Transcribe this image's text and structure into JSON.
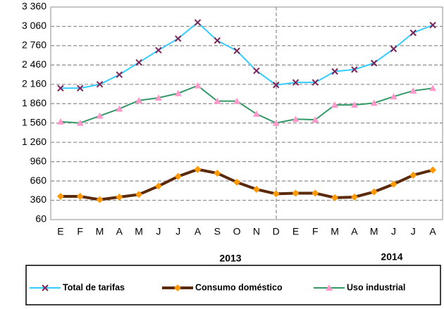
{
  "chart_data": {
    "type": "line",
    "categories": [
      "E",
      "F",
      "M",
      "A",
      "M",
      "J",
      "J",
      "A",
      "S",
      "O",
      "N",
      "D",
      "E",
      "F",
      "M",
      "A",
      "M",
      "J",
      "J",
      "A"
    ],
    "annotations": [
      "2013",
      "2014"
    ],
    "ylim": [
      60,
      3360
    ],
    "yticks": [
      60,
      360,
      660,
      960,
      {
        "value": 1260,
        "label": "1 260"
      },
      {
        "value": 1560,
        "label": "1 560"
      },
      {
        "value": 1860,
        "label": "1 860"
      },
      {
        "value": 2160,
        "label": "2 160"
      },
      {
        "value": 2460,
        "label": "2 460"
      },
      {
        "value": 2760,
        "label": "2 760"
      },
      {
        "value": 3060,
        "label": "3 060"
      },
      {
        "value": 3360,
        "label": "3 360"
      }
    ],
    "grid": true,
    "legend": "bottom",
    "series": [
      {
        "name": "Total de tarifas",
        "color": "#33ccff",
        "marker_color": "#7b2458",
        "marker": "x",
        "values": [
          2100,
          2100,
          2160,
          2310,
          2500,
          2690,
          2870,
          3120,
          2840,
          2680,
          2370,
          2150,
          2190,
          2190,
          2360,
          2390,
          2490,
          2710,
          2960,
          3080
        ]
      },
      {
        "name": "Consumo doméstico",
        "color": "#5a2a0a",
        "marker_color": "#ff9900",
        "marker": "diamond",
        "values": [
          420,
          420,
          370,
          410,
          450,
          580,
          730,
          840,
          780,
          640,
          530,
          460,
          470,
          470,
          400,
          410,
          490,
          610,
          750,
          830
        ]
      },
      {
        "name": "Uso industrial",
        "color": "#339966",
        "marker_color": "#ff99cc",
        "marker": "triangle",
        "values": [
          1580,
          1560,
          1670,
          1780,
          1910,
          1950,
          2020,
          2140,
          1900,
          1900,
          1700,
          1560,
          1620,
          1610,
          1840,
          1840,
          1870,
          1970,
          2060,
          2100
        ]
      }
    ]
  }
}
